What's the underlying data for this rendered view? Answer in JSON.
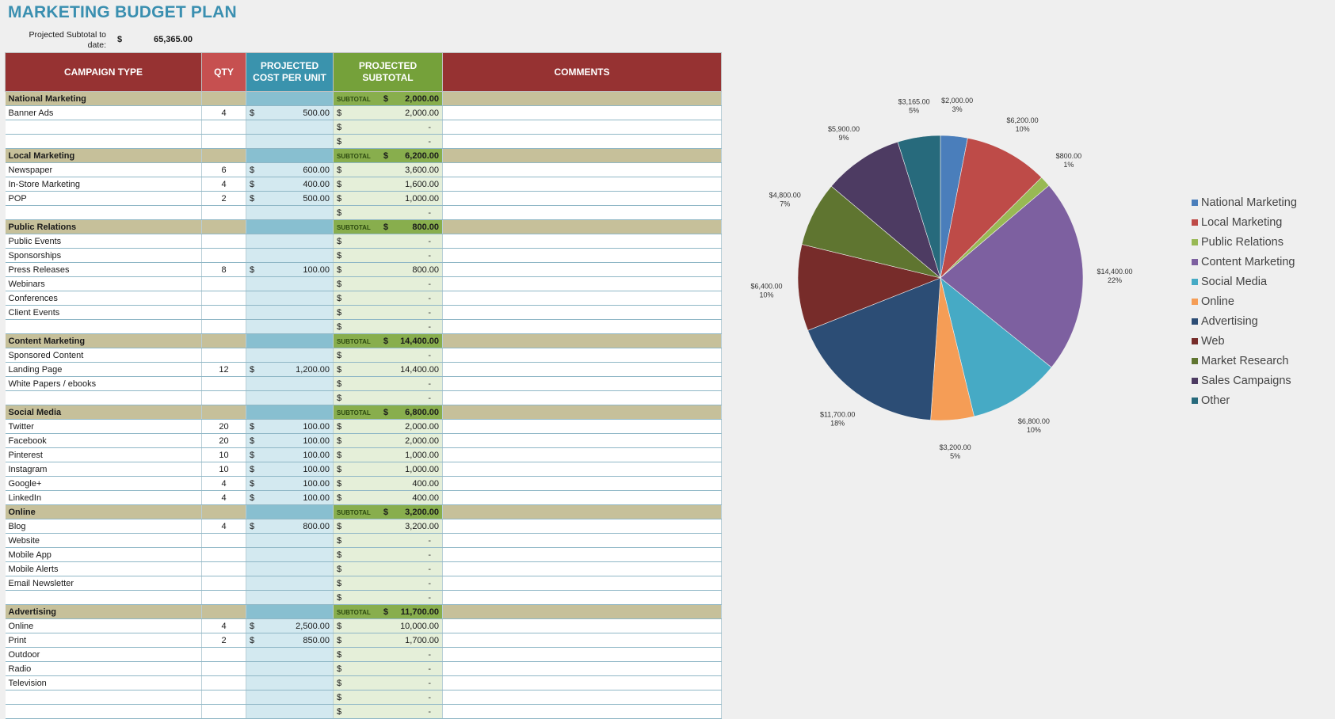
{
  "title": "MARKETING BUDGET PLAN",
  "projected_subtotal": {
    "label": "Projected Subtotal to date:",
    "currency": "$",
    "value": "65,365.00"
  },
  "headers": {
    "campaign_type": "CAMPAIGN TYPE",
    "qty": "QTY",
    "cost": "PROJECTED COST PER UNIT",
    "subtotal": "PROJECTED SUBTOTAL",
    "comments": "COMMENTS"
  },
  "currency_symbol": "$",
  "subtotal_label": "SUBTOTAL",
  "dash": "-",
  "rows": [
    {
      "kind": "cat",
      "name": "National Marketing",
      "subtotal": "2,000.00"
    },
    {
      "kind": "row",
      "name": "Banner Ads",
      "qty": "4",
      "cost": "500.00",
      "subtotal": "2,000.00"
    },
    {
      "kind": "row",
      "name": "",
      "qty": "",
      "cost": "",
      "subtotal": ""
    },
    {
      "kind": "row",
      "name": "",
      "qty": "",
      "cost": "",
      "subtotal": ""
    },
    {
      "kind": "cat",
      "name": "Local Marketing",
      "subtotal": "6,200.00"
    },
    {
      "kind": "row",
      "name": "Newspaper",
      "qty": "6",
      "cost": "600.00",
      "subtotal": "3,600.00"
    },
    {
      "kind": "row",
      "name": "In-Store Marketing",
      "qty": "4",
      "cost": "400.00",
      "subtotal": "1,600.00"
    },
    {
      "kind": "row",
      "name": "POP",
      "qty": "2",
      "cost": "500.00",
      "subtotal": "1,000.00"
    },
    {
      "kind": "row",
      "name": "",
      "qty": "",
      "cost": "",
      "subtotal": ""
    },
    {
      "kind": "cat",
      "name": "Public Relations",
      "subtotal": "800.00"
    },
    {
      "kind": "row",
      "name": "Public Events",
      "qty": "",
      "cost": "",
      "subtotal": ""
    },
    {
      "kind": "row",
      "name": "Sponsorships",
      "qty": "",
      "cost": "",
      "subtotal": ""
    },
    {
      "kind": "row",
      "name": "Press Releases",
      "qty": "8",
      "cost": "100.00",
      "subtotal": "800.00"
    },
    {
      "kind": "row",
      "name": "Webinars",
      "qty": "",
      "cost": "",
      "subtotal": ""
    },
    {
      "kind": "row",
      "name": "Conferences",
      "qty": "",
      "cost": "",
      "subtotal": ""
    },
    {
      "kind": "row",
      "name": "Client Events",
      "qty": "",
      "cost": "",
      "subtotal": ""
    },
    {
      "kind": "row",
      "name": "",
      "qty": "",
      "cost": "",
      "subtotal": ""
    },
    {
      "kind": "cat",
      "name": "Content Marketing",
      "subtotal": "14,400.00"
    },
    {
      "kind": "row",
      "name": "Sponsored Content",
      "qty": "",
      "cost": "",
      "subtotal": ""
    },
    {
      "kind": "row",
      "name": "Landing Page",
      "qty": "12",
      "cost": "1,200.00",
      "subtotal": "14,400.00"
    },
    {
      "kind": "row",
      "name": "White Papers / ebooks",
      "qty": "",
      "cost": "",
      "subtotal": ""
    },
    {
      "kind": "row",
      "name": "",
      "qty": "",
      "cost": "",
      "subtotal": ""
    },
    {
      "kind": "cat",
      "name": "Social Media",
      "subtotal": "6,800.00"
    },
    {
      "kind": "row",
      "name": "Twitter",
      "qty": "20",
      "cost": "100.00",
      "subtotal": "2,000.00"
    },
    {
      "kind": "row",
      "name": "Facebook",
      "qty": "20",
      "cost": "100.00",
      "subtotal": "2,000.00"
    },
    {
      "kind": "row",
      "name": "Pinterest",
      "qty": "10",
      "cost": "100.00",
      "subtotal": "1,000.00"
    },
    {
      "kind": "row",
      "name": "Instagram",
      "qty": "10",
      "cost": "100.00",
      "subtotal": "1,000.00"
    },
    {
      "kind": "row",
      "name": "Google+",
      "qty": "4",
      "cost": "100.00",
      "subtotal": "400.00"
    },
    {
      "kind": "row",
      "name": "LinkedIn",
      "qty": "4",
      "cost": "100.00",
      "subtotal": "400.00"
    },
    {
      "kind": "cat",
      "name": "Online",
      "subtotal": "3,200.00"
    },
    {
      "kind": "row",
      "name": "Blog",
      "qty": "4",
      "cost": "800.00",
      "subtotal": "3,200.00"
    },
    {
      "kind": "row",
      "name": "Website",
      "qty": "",
      "cost": "",
      "subtotal": ""
    },
    {
      "kind": "row",
      "name": "Mobile App",
      "qty": "",
      "cost": "",
      "subtotal": ""
    },
    {
      "kind": "row",
      "name": "Mobile Alerts",
      "qty": "",
      "cost": "",
      "subtotal": ""
    },
    {
      "kind": "row",
      "name": "Email Newsletter",
      "qty": "",
      "cost": "",
      "subtotal": ""
    },
    {
      "kind": "row",
      "name": "",
      "qty": "",
      "cost": "",
      "subtotal": ""
    },
    {
      "kind": "cat",
      "name": "Advertising",
      "subtotal": "11,700.00"
    },
    {
      "kind": "row",
      "name": "Online",
      "qty": "4",
      "cost": "2,500.00",
      "subtotal": "10,000.00"
    },
    {
      "kind": "row",
      "name": "Print",
      "qty": "2",
      "cost": "850.00",
      "subtotal": "1,700.00"
    },
    {
      "kind": "row",
      "name": "Outdoor",
      "qty": "",
      "cost": "",
      "subtotal": ""
    },
    {
      "kind": "row",
      "name": "Radio",
      "qty": "",
      "cost": "",
      "subtotal": ""
    },
    {
      "kind": "row",
      "name": "Television",
      "qty": "",
      "cost": "",
      "subtotal": ""
    },
    {
      "kind": "row",
      "name": "",
      "qty": "",
      "cost": "",
      "subtotal": ""
    },
    {
      "kind": "row",
      "name": "",
      "qty": "",
      "cost": "",
      "subtotal": ""
    }
  ],
  "chart_data": {
    "type": "pie",
    "categories": [
      "National Marketing",
      "Local Marketing",
      "Public Relations",
      "Content Marketing",
      "Social Media",
      "Online",
      "Advertising",
      "Web",
      "Market Research",
      "Sales Campaigns",
      "Other"
    ],
    "values": [
      2000,
      6200,
      800,
      14400,
      6800,
      3200,
      11700,
      6400,
      4800,
      5900,
      3165
    ],
    "value_labels": [
      "$2,000.00",
      "$6,200.00",
      "$800.00",
      "$14,400.00",
      "$6,800.00",
      "$3,200.00",
      "$11,700.00",
      "$6,400.00",
      "$4,800.00",
      "$5,900.00",
      "$3,165.00"
    ],
    "percent_labels": [
      "3%",
      "10%",
      "1%",
      "22%",
      "10%",
      "5%",
      "18%",
      "10%",
      "7%",
      "9%",
      "5%"
    ],
    "colors": [
      "#4a7ebb",
      "#be4b48",
      "#98b954",
      "#7d60a0",
      "#46aac5",
      "#f59d56",
      "#2c4d75",
      "#772c2a",
      "#5f7530",
      "#4d3b62",
      "#276a7c"
    ],
    "legend_position": "right"
  }
}
